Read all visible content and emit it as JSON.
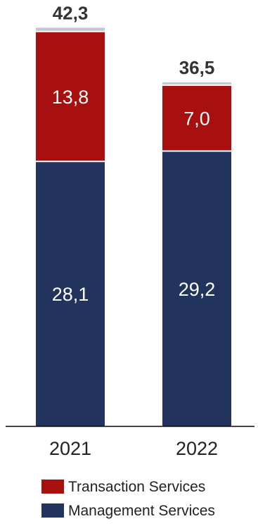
{
  "chart_data": {
    "type": "bar",
    "stacked": true,
    "categories": [
      "2021",
      "2022"
    ],
    "series": [
      {
        "name": "Management Services",
        "values": [
          28.1,
          29.2
        ],
        "labels": [
          "28,1",
          "29,2"
        ],
        "color": "#22345e"
      },
      {
        "name": "Transaction Services",
        "values": [
          13.8,
          7.0
        ],
        "labels": [
          "13,8",
          "7,0"
        ],
        "color": "#a80f0f"
      },
      {
        "name": "",
        "values": [
          0.4,
          0.3
        ],
        "labels": [
          "",
          ""
        ],
        "color": "#c3c6cc"
      }
    ],
    "totals": [
      42.3,
      36.5
    ],
    "total_labels": [
      "42,3",
      "36,5"
    ],
    "ylim": [
      0,
      43
    ],
    "grid": false,
    "legend_position": "bottom",
    "legend": [
      {
        "label": "Transaction Services",
        "color": "#a80f0f"
      },
      {
        "label": "Management Services",
        "color": "#22345e"
      }
    ]
  }
}
